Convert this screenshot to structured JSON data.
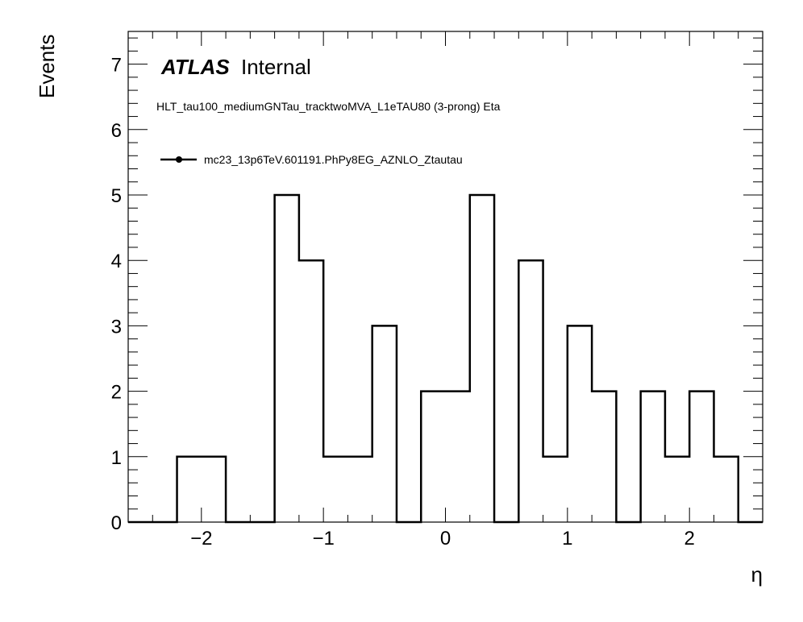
{
  "chart_data": {
    "type": "histogram",
    "atlas_label": "ATLAS",
    "atlas_status": "Internal",
    "subtitle": "HLT_tau100_mediumGNTau_tracktwoMVA_L1eTAU80 (3-prong) Eta",
    "xlabel": "η",
    "ylabel": "Events",
    "xlim": [
      -2.6,
      2.6
    ],
    "ylim": [
      0,
      7.5
    ],
    "bin_edges": [
      -2.6,
      -2.4,
      -2.2,
      -2.0,
      -1.8,
      -1.6,
      -1.4,
      -1.2,
      -1.0,
      -0.8,
      -0.6,
      -0.4,
      -0.2,
      0.0,
      0.2,
      0.4,
      0.6,
      0.8,
      1.0,
      1.2,
      1.4,
      1.6,
      1.8,
      2.0,
      2.2,
      2.4,
      2.6
    ],
    "series": [
      {
        "name": "mc23_13p6TeV.601191.PhPy8EG_AZNLO_Ztautau",
        "values": [
          0,
          0,
          1,
          1,
          0,
          0,
          5,
          4,
          1,
          1,
          3,
          0,
          2,
          2,
          5,
          0,
          4,
          1,
          3,
          2,
          0,
          2,
          1,
          2,
          1,
          0
        ]
      }
    ],
    "x_ticks": [
      {
        "value": -2,
        "label": "−2"
      },
      {
        "value": -1,
        "label": "−1"
      },
      {
        "value": 0,
        "label": "0"
      },
      {
        "value": 1,
        "label": "1"
      },
      {
        "value": 2,
        "label": "2"
      }
    ],
    "y_ticks": [
      {
        "value": 0,
        "label": "0"
      },
      {
        "value": 1,
        "label": "1"
      },
      {
        "value": 2,
        "label": "2"
      },
      {
        "value": 3,
        "label": "3"
      },
      {
        "value": 4,
        "label": "4"
      },
      {
        "value": 5,
        "label": "5"
      },
      {
        "value": 6,
        "label": "6"
      },
      {
        "value": 7,
        "label": "7"
      }
    ],
    "x_minor_step": 0.2,
    "y_minor_step": 0.2,
    "grid": false,
    "legend_position": "top-left",
    "line_color": "#000000"
  }
}
